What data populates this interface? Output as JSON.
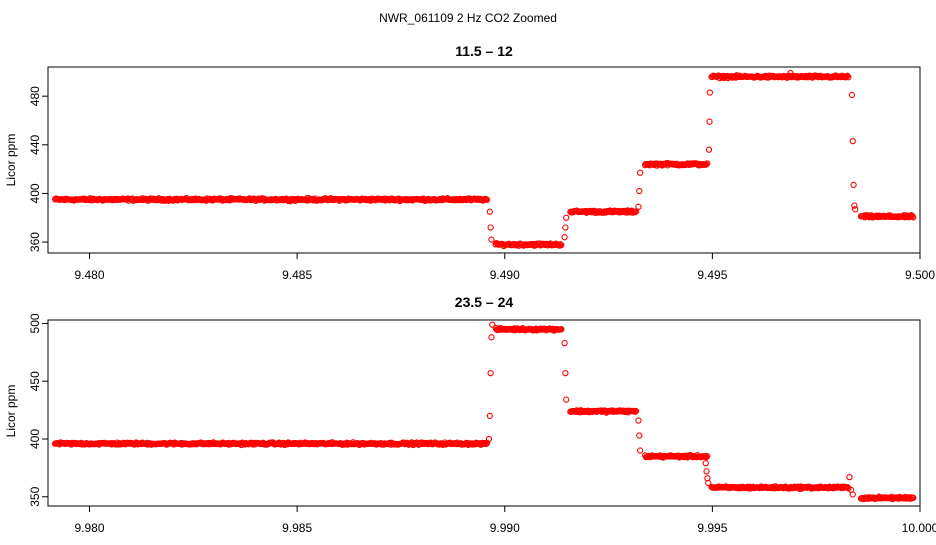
{
  "figure": {
    "title": "NWR_061109  2 Hz CO2 Zoomed"
  },
  "chart_data": [
    {
      "type": "scatter",
      "title": "11.5 – 12",
      "xlabel": "",
      "ylabel": "Licor ppm",
      "xlim": [
        9.479,
        9.5
      ],
      "ylim": [
        351,
        504
      ],
      "xticks": [
        9.48,
        9.485,
        9.49,
        9.495,
        9.5
      ],
      "xtick_labels": [
        "9.480",
        "9.485",
        "9.490",
        "9.495",
        "9.500"
      ],
      "yticks": [
        360,
        400,
        440,
        480
      ],
      "ytick_labels": [
        "360",
        "400",
        "440",
        "480"
      ],
      "grid": false,
      "marker_color": "#ff0000",
      "series": [
        {
          "segments": [
            {
              "x_start": 9.47917,
              "x_end": 9.48958,
              "y": 395
            },
            {
              "x_start": 9.48978,
              "x_end": 9.49138,
              "y": 358
            },
            {
              "x_start": 9.49158,
              "x_end": 9.49318,
              "y": 385
            },
            {
              "x_start": 9.49338,
              "x_end": 9.49488,
              "y": 424
            },
            {
              "x_start": 9.49498,
              "x_end": 9.49828,
              "y": 496
            },
            {
              "x_start": 9.49858,
              "x_end": 9.49985,
              "y": 381
            }
          ],
          "transitions": [
            {
              "x": 9.48964,
              "y": 385
            },
            {
              "x": 9.48966,
              "y": 372
            },
            {
              "x": 9.48968,
              "y": 362
            },
            {
              "x": 9.49144,
              "y": 364
            },
            {
              "x": 9.49146,
              "y": 372
            },
            {
              "x": 9.49148,
              "y": 380
            },
            {
              "x": 9.49322,
              "y": 389
            },
            {
              "x": 9.49324,
              "y": 402
            },
            {
              "x": 9.49326,
              "y": 417
            },
            {
              "x": 9.49492,
              "y": 436
            },
            {
              "x": 9.49493,
              "y": 459
            },
            {
              "x": 9.49494,
              "y": 483
            },
            {
              "x": 9.49836,
              "y": 481
            },
            {
              "x": 9.49838,
              "y": 443
            },
            {
              "x": 9.4984,
              "y": 407
            },
            {
              "x": 9.49842,
              "y": 390
            },
            {
              "x": 9.49844,
              "y": 387
            },
            {
              "x": 9.49688,
              "y": 499
            }
          ]
        }
      ]
    },
    {
      "type": "scatter",
      "title": "23.5 – 24",
      "xlabel": "",
      "ylabel": "Licor ppm",
      "xlim": [
        9.979,
        10.0
      ],
      "ylim": [
        342,
        503
      ],
      "xticks": [
        9.98,
        9.985,
        9.99,
        9.995,
        10.0
      ],
      "xtick_labels": [
        "9.980",
        "9.985",
        "9.990",
        "9.995",
        "10.000"
      ],
      "yticks": [
        350,
        400,
        450,
        500
      ],
      "ytick_labels": [
        "350",
        "400",
        "450",
        "500"
      ],
      "grid": false,
      "marker_color": "#ff0000",
      "series": [
        {
          "segments": [
            {
              "x_start": 9.97917,
              "x_end": 9.98958,
              "y": 396
            },
            {
              "x_start": 9.98978,
              "x_end": 9.99138,
              "y": 495
            },
            {
              "x_start": 9.99158,
              "x_end": 9.99318,
              "y": 424
            },
            {
              "x_start": 9.99338,
              "x_end": 9.99488,
              "y": 385
            },
            {
              "x_start": 9.99498,
              "x_end": 9.99828,
              "y": 358
            },
            {
              "x_start": 9.99858,
              "x_end": 9.99985,
              "y": 349
            }
          ],
          "transitions": [
            {
              "x": 9.98962,
              "y": 400
            },
            {
              "x": 9.98964,
              "y": 420
            },
            {
              "x": 9.98966,
              "y": 457
            },
            {
              "x": 9.98968,
              "y": 488
            },
            {
              "x": 9.9897,
              "y": 499
            },
            {
              "x": 9.99144,
              "y": 483
            },
            {
              "x": 9.99146,
              "y": 457
            },
            {
              "x": 9.99148,
              "y": 434
            },
            {
              "x": 9.99322,
              "y": 416
            },
            {
              "x": 9.99324,
              "y": 403
            },
            {
              "x": 9.99326,
              "y": 390
            },
            {
              "x": 9.99484,
              "y": 379
            },
            {
              "x": 9.99486,
              "y": 372
            },
            {
              "x": 9.99488,
              "y": 366
            },
            {
              "x": 9.9949,
              "y": 362
            },
            {
              "x": 9.9983,
              "y": 367
            },
            {
              "x": 9.99834,
              "y": 356
            },
            {
              "x": 9.99838,
              "y": 352
            }
          ]
        }
      ]
    }
  ]
}
